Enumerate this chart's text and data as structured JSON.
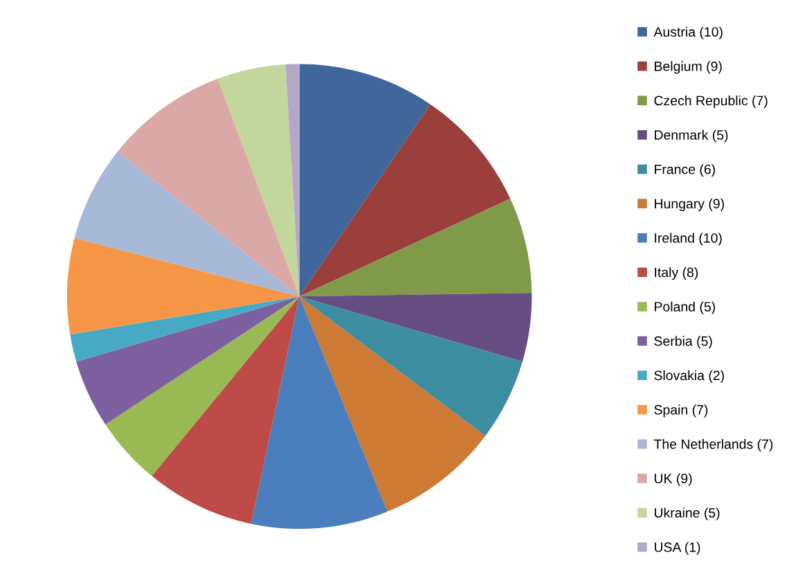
{
  "chart_data": {
    "type": "pie",
    "categories": [
      "Austria (10)",
      "Belgium (9)",
      "Czech Republic (7)",
      "Denmark (5)",
      "France (6)",
      "Hungary (9)",
      "Ireland (10)",
      "Italy (8)",
      "Poland (5)",
      "Serbia (5)",
      "Slovakia (2)",
      "Spain (7)",
      "The Netherlands (7)",
      "UK (9)",
      "Ukraine (5)",
      "USA (1)"
    ],
    "values": [
      10,
      9,
      7,
      5,
      6,
      9,
      10,
      8,
      5,
      5,
      2,
      7,
      7,
      9,
      5,
      1
    ],
    "colors": [
      "#3f679b",
      "#9b3f3d",
      "#7f9a48",
      "#664d84",
      "#3d8da3",
      "#cc7a34",
      "#4a7ebd",
      "#be4b48",
      "#98b954",
      "#7d60a0",
      "#46aac5",
      "#f79646",
      "#a8b9d8",
      "#d9a8a7",
      "#c3d69b",
      "#b3a8c8"
    ],
    "legend": "right"
  }
}
